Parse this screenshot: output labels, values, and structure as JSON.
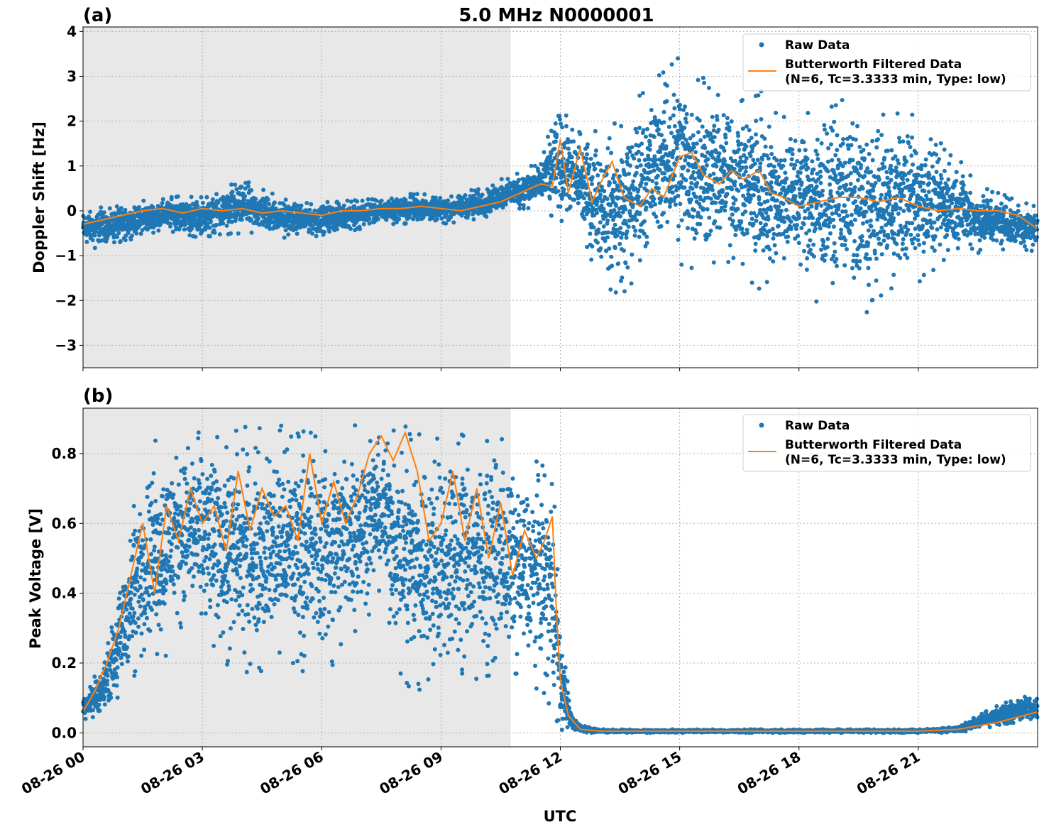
{
  "figure": {
    "title": "5.0 MHz N0000001",
    "xlabel": "UTC"
  },
  "colors": {
    "raw": "#1f77b4",
    "filtered": "#ff7f0e",
    "night_shade": "#e8e8e8",
    "grid": "#b0b0b0"
  },
  "legend": {
    "raw_label": "Raw Data",
    "filtered_line1": "Butterworth Filtered Data",
    "filtered_line2": "(N=6, Tc=3.3333 min, Type: low)",
    "placement": "top-right"
  },
  "chart_data": [
    {
      "type": "scatter",
      "panel_label": "(a)",
      "ylabel": "Doppler Shift [Hz]",
      "xlim": [
        0,
        24
      ],
      "ylim": [
        -3.5,
        4.1
      ],
      "yticks": [
        -3,
        -2,
        -1,
        0,
        1,
        2,
        3,
        4
      ],
      "ytick_labels": [
        "−3",
        "−2",
        "−1",
        "0",
        "1",
        "2",
        "3",
        "4"
      ],
      "shaded_range_hours": [
        0,
        10.75
      ],
      "grid": true,
      "series": [
        {
          "name": "Raw Data",
          "envelope_hours": [
            0,
            1,
            2,
            3,
            4,
            5,
            6,
            7,
            8,
            9,
            10,
            10.75,
            11.5,
            12,
            12.5,
            13,
            13.5,
            14,
            14.5,
            15,
            15.5,
            16,
            16.5,
            17,
            17.5,
            18,
            18.5,
            19,
            19.5,
            20,
            20.5,
            21,
            21.5,
            22,
            22.5,
            23,
            24
          ],
          "envelope_high": [
            0.1,
            0.1,
            0.35,
            0.3,
            0.7,
            0.3,
            0.2,
            0.25,
            0.4,
            0.35,
            0.5,
            0.8,
            1.1,
            2.6,
            1.8,
            1.9,
            2.0,
            2.6,
            3.1,
            3.6,
            3.0,
            2.9,
            2.7,
            2.8,
            2.1,
            2.3,
            2.5,
            2.6,
            2.5,
            2.2,
            2.3,
            2.2,
            1.6,
            1.2,
            0.6,
            0.4,
            0.1
          ],
          "envelope_low": [
            -0.9,
            -0.7,
            -0.5,
            -0.6,
            -0.5,
            -0.6,
            -0.6,
            -0.4,
            -0.3,
            -0.3,
            -0.2,
            0.0,
            0.1,
            -0.3,
            -0.6,
            -1.5,
            -2.1,
            -1.5,
            -1.0,
            -1.3,
            -1.4,
            -1.3,
            -1.2,
            -1.9,
            -1.5,
            -1.6,
            -2.1,
            -1.8,
            -2.4,
            -2.1,
            -1.7,
            -1.6,
            -1.3,
            -1.0,
            -1.0,
            -0.9,
            -0.9
          ]
        },
        {
          "name": "Butterworth Filtered Data (N=6, Tc=3.3333 min, Type: low)",
          "x_hours": [
            0,
            0.5,
            1,
            1.5,
            2,
            2.5,
            3,
            3.5,
            4,
            4.5,
            5,
            5.5,
            6,
            6.5,
            7,
            7.5,
            8,
            8.5,
            9,
            9.5,
            10,
            10.5,
            11,
            11.5,
            11.8,
            12,
            12.2,
            12.5,
            12.8,
            13,
            13.3,
            13.6,
            14,
            14.3,
            14.6,
            15,
            15.3,
            15.6,
            16,
            16.3,
            16.6,
            17,
            17.3,
            17.6,
            18,
            18.5,
            19,
            19.5,
            20,
            20.5,
            21,
            21.5,
            22,
            22.5,
            23,
            23.5,
            24
          ],
          "y": [
            -0.3,
            -0.2,
            -0.1,
            0.0,
            0.05,
            -0.05,
            0.05,
            0.0,
            0.05,
            -0.05,
            0.0,
            -0.05,
            -0.1,
            0.0,
            0.0,
            0.05,
            0.05,
            0.1,
            0.05,
            0.0,
            0.1,
            0.2,
            0.4,
            0.6,
            0.55,
            1.6,
            0.4,
            1.4,
            0.2,
            0.6,
            1.1,
            0.3,
            0.1,
            0.5,
            0.3,
            1.2,
            1.3,
            0.8,
            0.6,
            0.9,
            0.7,
            0.9,
            0.4,
            0.3,
            0.1,
            0.2,
            0.3,
            0.3,
            0.2,
            0.3,
            0.1,
            0.0,
            0.05,
            0.0,
            0.0,
            -0.1,
            -0.4
          ]
        }
      ]
    },
    {
      "type": "scatter",
      "panel_label": "(b)",
      "ylabel": "Peak Voltage [V]",
      "xlim": [
        0,
        24
      ],
      "ylim": [
        -0.04,
        0.93
      ],
      "yticks": [
        0.0,
        0.2,
        0.4,
        0.6,
        0.8
      ],
      "ytick_labels": [
        "0.0",
        "0.2",
        "0.4",
        "0.6",
        "0.8"
      ],
      "xticks": [
        0,
        3,
        6,
        9,
        12,
        15,
        18,
        21
      ],
      "xtick_labels": [
        "08-26 00",
        "08-26 03",
        "08-26 06",
        "08-26 09",
        "08-26 12",
        "08-26 15",
        "08-26 18",
        "08-26 21"
      ],
      "shaded_range_hours": [
        0,
        10.75
      ],
      "grid": true,
      "series": [
        {
          "name": "Raw Data",
          "envelope_hours": [
            0,
            0.5,
            1,
            1.5,
            2,
            2.5,
            3,
            4,
            5,
            6,
            7,
            7.5,
            8,
            8.5,
            9,
            9.5,
            10,
            10.5,
            11,
            11.5,
            11.8,
            12,
            12.3,
            12.6,
            13,
            15,
            18,
            21,
            22,
            22.5,
            23,
            23.5,
            24
          ],
          "envelope_high": [
            0.12,
            0.2,
            0.5,
            0.8,
            0.86,
            0.87,
            0.88,
            0.88,
            0.88,
            0.88,
            0.89,
            0.89,
            0.88,
            0.87,
            0.88,
            0.88,
            0.87,
            0.86,
            0.78,
            0.8,
            0.8,
            0.3,
            0.05,
            0.02,
            0.01,
            0.01,
            0.01,
            0.01,
            0.02,
            0.05,
            0.08,
            0.1,
            0.11
          ],
          "envelope_low": [
            0.03,
            0.05,
            0.1,
            0.2,
            0.2,
            0.3,
            0.25,
            0.15,
            0.2,
            0.15,
            0.3,
            0.4,
            0.15,
            0.1,
            0.1,
            0.15,
            0.15,
            0.15,
            0.15,
            0.1,
            0.05,
            0.0,
            0.0,
            0.0,
            0.0,
            0.0,
            0.0,
            0.0,
            0.0,
            0.01,
            0.02,
            0.03,
            0.03
          ]
        },
        {
          "name": "Butterworth Filtered Data (N=6, Tc=3.3333 min, Type: low)",
          "x_hours": [
            0,
            0.3,
            0.6,
            0.9,
            1.2,
            1.5,
            1.8,
            2.1,
            2.4,
            2.7,
            3.0,
            3.3,
            3.6,
            3.9,
            4.2,
            4.5,
            4.8,
            5.1,
            5.4,
            5.7,
            6.0,
            6.3,
            6.6,
            6.9,
            7.2,
            7.5,
            7.8,
            8.1,
            8.4,
            8.7,
            9.0,
            9.3,
            9.6,
            9.9,
            10.2,
            10.5,
            10.8,
            11.1,
            11.4,
            11.6,
            11.8,
            11.9,
            12.0,
            12.2,
            12.5,
            13,
            15,
            18,
            21,
            22,
            22.5,
            23,
            23.5,
            24
          ],
          "y": [
            0.06,
            0.12,
            0.2,
            0.3,
            0.45,
            0.6,
            0.4,
            0.65,
            0.55,
            0.7,
            0.6,
            0.65,
            0.52,
            0.75,
            0.58,
            0.7,
            0.62,
            0.65,
            0.55,
            0.8,
            0.6,
            0.72,
            0.6,
            0.68,
            0.8,
            0.85,
            0.78,
            0.86,
            0.75,
            0.55,
            0.6,
            0.75,
            0.55,
            0.7,
            0.5,
            0.66,
            0.45,
            0.58,
            0.5,
            0.55,
            0.62,
            0.35,
            0.15,
            0.05,
            0.01,
            0.005,
            0.005,
            0.005,
            0.005,
            0.01,
            0.02,
            0.03,
            0.045,
            0.06
          ]
        }
      ]
    }
  ]
}
